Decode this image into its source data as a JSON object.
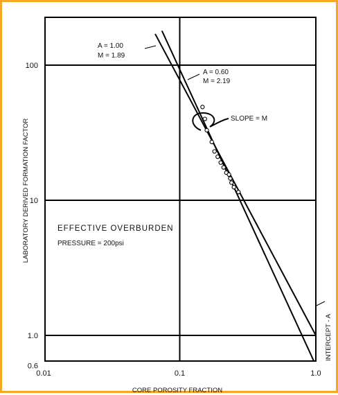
{
  "chart_data": {
    "type": "scatter",
    "xscale": "log",
    "yscale": "log",
    "xlim": [
      0.01,
      1.0
    ],
    "ylim": [
      0.6,
      260
    ],
    "grid": true,
    "xlabel": "CORE POROSITY FRACTION",
    "ylabel": "LABORATORY DERIVED FORMATION FACTOR",
    "x_ticks": [
      {
        "value": 0.01,
        "label": "0.01"
      },
      {
        "value": 0.1,
        "label": "0.1"
      },
      {
        "value": 1.0,
        "label": "1.0"
      }
    ],
    "y_ticks": [
      {
        "value": 0.6,
        "label": "0.6"
      },
      {
        "value": 1.0,
        "label": "1.0"
      },
      {
        "value": 10,
        "label": "10"
      },
      {
        "value": 100,
        "label": "100"
      }
    ],
    "lines": [
      {
        "A": 1.0,
        "M": 1.89,
        "label_a": "A = 1.00",
        "label_m": "M = 1.89"
      },
      {
        "A": 0.6,
        "M": 2.19,
        "label_a": "A = 0.60",
        "label_m": "M = 2.19"
      }
    ],
    "points": [
      {
        "x": 0.147,
        "y": 49
      },
      {
        "x": 0.153,
        "y": 40
      },
      {
        "x": 0.158,
        "y": 33
      },
      {
        "x": 0.172,
        "y": 27
      },
      {
        "x": 0.18,
        "y": 23
      },
      {
        "x": 0.19,
        "y": 21
      },
      {
        "x": 0.2,
        "y": 19
      },
      {
        "x": 0.21,
        "y": 17.5
      },
      {
        "x": 0.22,
        "y": 16
      },
      {
        "x": 0.23,
        "y": 15.5
      },
      {
        "x": 0.235,
        "y": 14.5
      },
      {
        "x": 0.24,
        "y": 13.5
      },
      {
        "x": 0.25,
        "y": 12.5
      },
      {
        "x": 0.27,
        "y": 11.5
      }
    ],
    "annotations": {
      "slope": "SLOPE = M",
      "intercept": "INTERCEPT - A",
      "condition_line1": "EFFECTIVE OVERBURDEN",
      "condition_line2": "PRESSURE = 200psi"
    }
  }
}
